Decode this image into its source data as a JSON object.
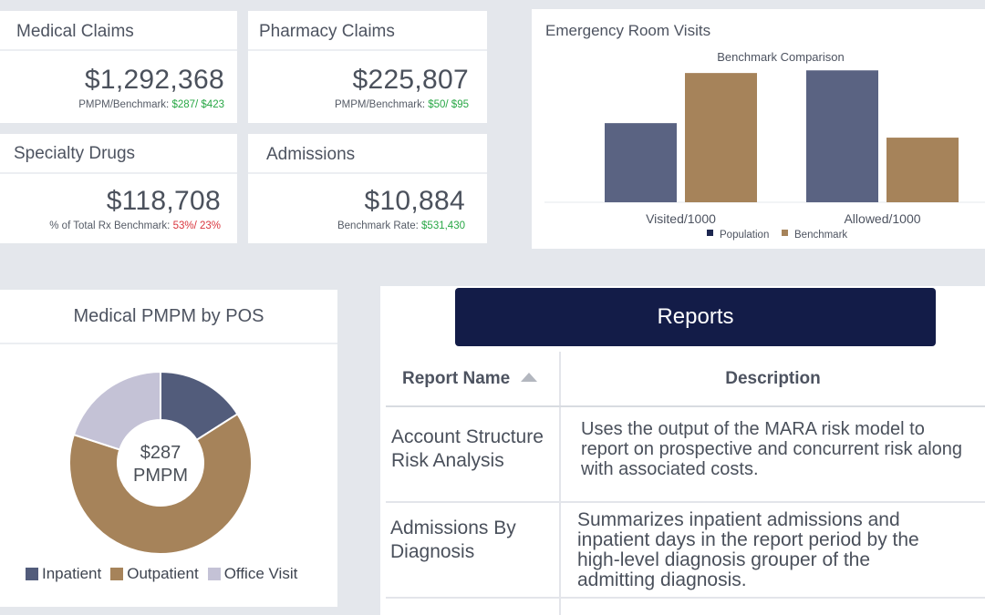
{
  "kpis": {
    "medical_claims": {
      "title": "Medical Claims",
      "value": "$1,292,368",
      "sub_label": "PMPM/Benchmark: ",
      "sub_value": "$287/ $423"
    },
    "pharmacy_claims": {
      "title": "Pharmacy Claims",
      "value": "$225,807",
      "sub_label": "PMPM/Benchmark: ",
      "sub_value": "$50/ $95"
    },
    "specialty_drugs": {
      "title": "Specialty Drugs",
      "value": "$118,708",
      "sub_label": "% of Total Rx Benchmark: ",
      "sub_value": "53%/ 23%"
    },
    "admissions": {
      "title": "Admissions",
      "value": "$10,884",
      "sub_label": "Benchmark Rate: ",
      "sub_value": "$531,430"
    }
  },
  "er_visits": {
    "title": "Emergency Room Visits"
  },
  "pos": {
    "title": "Medical PMPM by POS",
    "center_value": "$287",
    "center_unit": "PMPM"
  },
  "reports": {
    "title": "Reports",
    "col_name": "Report Name",
    "col_desc": "Description",
    "rows": [
      {
        "name": "Account Structure Risk Analysis",
        "desc": "Uses the output of the MARA risk model to report on prospective and concurrent risk along with associated costs."
      },
      {
        "name": "Admissions By Diagnosis",
        "desc": "Summarizes inpatient admissions and inpatient days in the report period by the high-level diagnosis grouper of the admitting diagnosis."
      }
    ]
  },
  "chart_data": [
    {
      "type": "bar",
      "title": "Benchmark Comparison",
      "categories": [
        "Visited/1000",
        "Allowed/1000"
      ],
      "series": [
        {
          "name": "Population",
          "color": "#5a6382",
          "values": [
            60,
            100
          ]
        },
        {
          "name": "Benchmark",
          "color": "#a6835a",
          "values": [
            98,
            49
          ]
        }
      ],
      "ylim": [
        0,
        105
      ],
      "legend": "bottom"
    },
    {
      "type": "pie",
      "subtype": "donut",
      "categories": [
        "Inpatient",
        "Outpatient",
        "Office Visit"
      ],
      "values": [
        16,
        64,
        20
      ],
      "colors": [
        "#525c7b",
        "#a6835a",
        "#c4c2d6"
      ],
      "legend": "bottom"
    }
  ]
}
